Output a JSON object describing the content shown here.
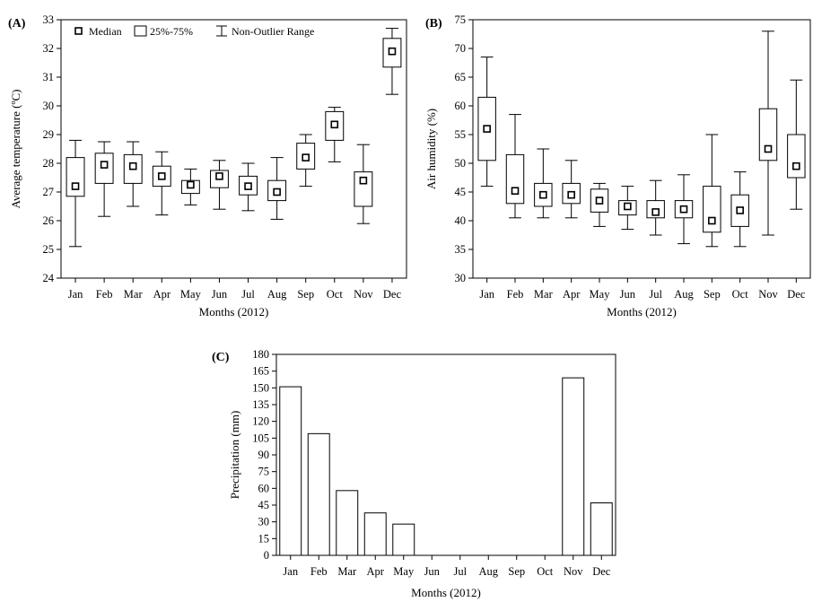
{
  "months": [
    "Jan",
    "Feb",
    "Mar",
    "Apr",
    "May",
    "Jun",
    "Jul",
    "Aug",
    "Sep",
    "Oct",
    "Nov",
    "Dec"
  ],
  "legend": {
    "median": "Median",
    "box": "25%-75%",
    "whisker": "Non-Outlier Range"
  },
  "chart_data": [
    {
      "panel": "(A)",
      "type": "box",
      "xlabel": "Months (2012)",
      "ylabel": "Average temperature (ºC)",
      "ylim": [
        24,
        33
      ],
      "yticks": [
        24,
        25,
        26,
        27,
        28,
        29,
        30,
        31,
        32,
        33
      ],
      "categories": [
        "Jan",
        "Feb",
        "Mar",
        "Apr",
        "May",
        "Jun",
        "Jul",
        "Aug",
        "Sep",
        "Oct",
        "Nov",
        "Dec"
      ],
      "boxes": [
        {
          "min": 25.1,
          "q1": 26.85,
          "median": 27.2,
          "q3": 28.2,
          "max": 28.8
        },
        {
          "min": 26.15,
          "q1": 27.3,
          "median": 27.95,
          "q3": 28.35,
          "max": 28.75
        },
        {
          "min": 26.5,
          "q1": 27.3,
          "median": 27.9,
          "q3": 28.3,
          "max": 28.75
        },
        {
          "min": 26.2,
          "q1": 27.2,
          "median": 27.55,
          "q3": 27.9,
          "max": 28.4
        },
        {
          "min": 26.55,
          "q1": 26.95,
          "median": 27.25,
          "q3": 27.4,
          "max": 27.8
        },
        {
          "min": 26.4,
          "q1": 27.15,
          "median": 27.55,
          "q3": 27.75,
          "max": 28.1
        },
        {
          "min": 26.35,
          "q1": 26.9,
          "median": 27.2,
          "q3": 27.55,
          "max": 28.0
        },
        {
          "min": 26.05,
          "q1": 26.7,
          "median": 27.0,
          "q3": 27.4,
          "max": 28.2
        },
        {
          "min": 27.2,
          "q1": 27.8,
          "median": 28.2,
          "q3": 28.7,
          "max": 29.0
        },
        {
          "min": 28.05,
          "q1": 28.8,
          "median": 29.35,
          "q3": 29.8,
          "max": 29.95
        },
        {
          "min": 25.9,
          "q1": 26.5,
          "median": 27.4,
          "q3": 27.7,
          "max": 28.65
        },
        {
          "min": 30.4,
          "q1": 31.35,
          "median": 31.9,
          "q3": 32.35,
          "max": 32.7
        }
      ]
    },
    {
      "panel": "(B)",
      "type": "box",
      "xlabel": "Months (2012)",
      "ylabel": "Air humidity (%)",
      "ylim": [
        30,
        75
      ],
      "yticks": [
        30,
        35,
        40,
        45,
        50,
        55,
        60,
        65,
        70,
        75
      ],
      "categories": [
        "Jan",
        "Feb",
        "Mar",
        "Apr",
        "May",
        "Jun",
        "Jul",
        "Aug",
        "Sep",
        "Oct",
        "Nov",
        "Dec"
      ],
      "boxes": [
        {
          "min": 46,
          "q1": 50.5,
          "median": 56,
          "q3": 61.5,
          "max": 68.5
        },
        {
          "min": 40.5,
          "q1": 43,
          "median": 45.2,
          "q3": 51.5,
          "max": 58.5
        },
        {
          "min": 40.5,
          "q1": 42.5,
          "median": 44.5,
          "q3": 46.5,
          "max": 52.5
        },
        {
          "min": 40.5,
          "q1": 43,
          "median": 44.5,
          "q3": 46.5,
          "max": 50.5
        },
        {
          "min": 39,
          "q1": 41.5,
          "median": 43.5,
          "q3": 45.5,
          "max": 46.5
        },
        {
          "min": 38.5,
          "q1": 41,
          "median": 42.5,
          "q3": 43.5,
          "max": 46
        },
        {
          "min": 37.5,
          "q1": 40.5,
          "median": 41.5,
          "q3": 43.5,
          "max": 47
        },
        {
          "min": 36,
          "q1": 40.5,
          "median": 42,
          "q3": 43.5,
          "max": 48
        },
        {
          "min": 35.5,
          "q1": 38,
          "median": 40,
          "q3": 46,
          "max": 55
        },
        {
          "min": 35.5,
          "q1": 39,
          "median": 41.8,
          "q3": 44.5,
          "max": 48.5
        },
        {
          "min": 37.5,
          "q1": 50.5,
          "median": 52.5,
          "q3": 59.5,
          "max": 73
        },
        {
          "min": 42,
          "q1": 47.5,
          "median": 49.5,
          "q3": 55,
          "max": 64.5
        }
      ]
    },
    {
      "panel": "(C)",
      "type": "bar",
      "xlabel": "Months (2012)",
      "ylabel": "Precipitation (mm)",
      "ylim": [
        0,
        180
      ],
      "yticks": [
        0,
        15,
        30,
        45,
        60,
        75,
        90,
        105,
        120,
        135,
        150,
        165,
        180
      ],
      "categories": [
        "Jan",
        "Feb",
        "Mar",
        "Apr",
        "May",
        "Jun",
        "Jul",
        "Aug",
        "Sep",
        "Oct",
        "Nov",
        "Dec"
      ],
      "values": [
        151,
        109,
        58,
        38,
        28,
        0,
        0,
        0,
        0,
        0,
        159,
        47
      ]
    }
  ]
}
